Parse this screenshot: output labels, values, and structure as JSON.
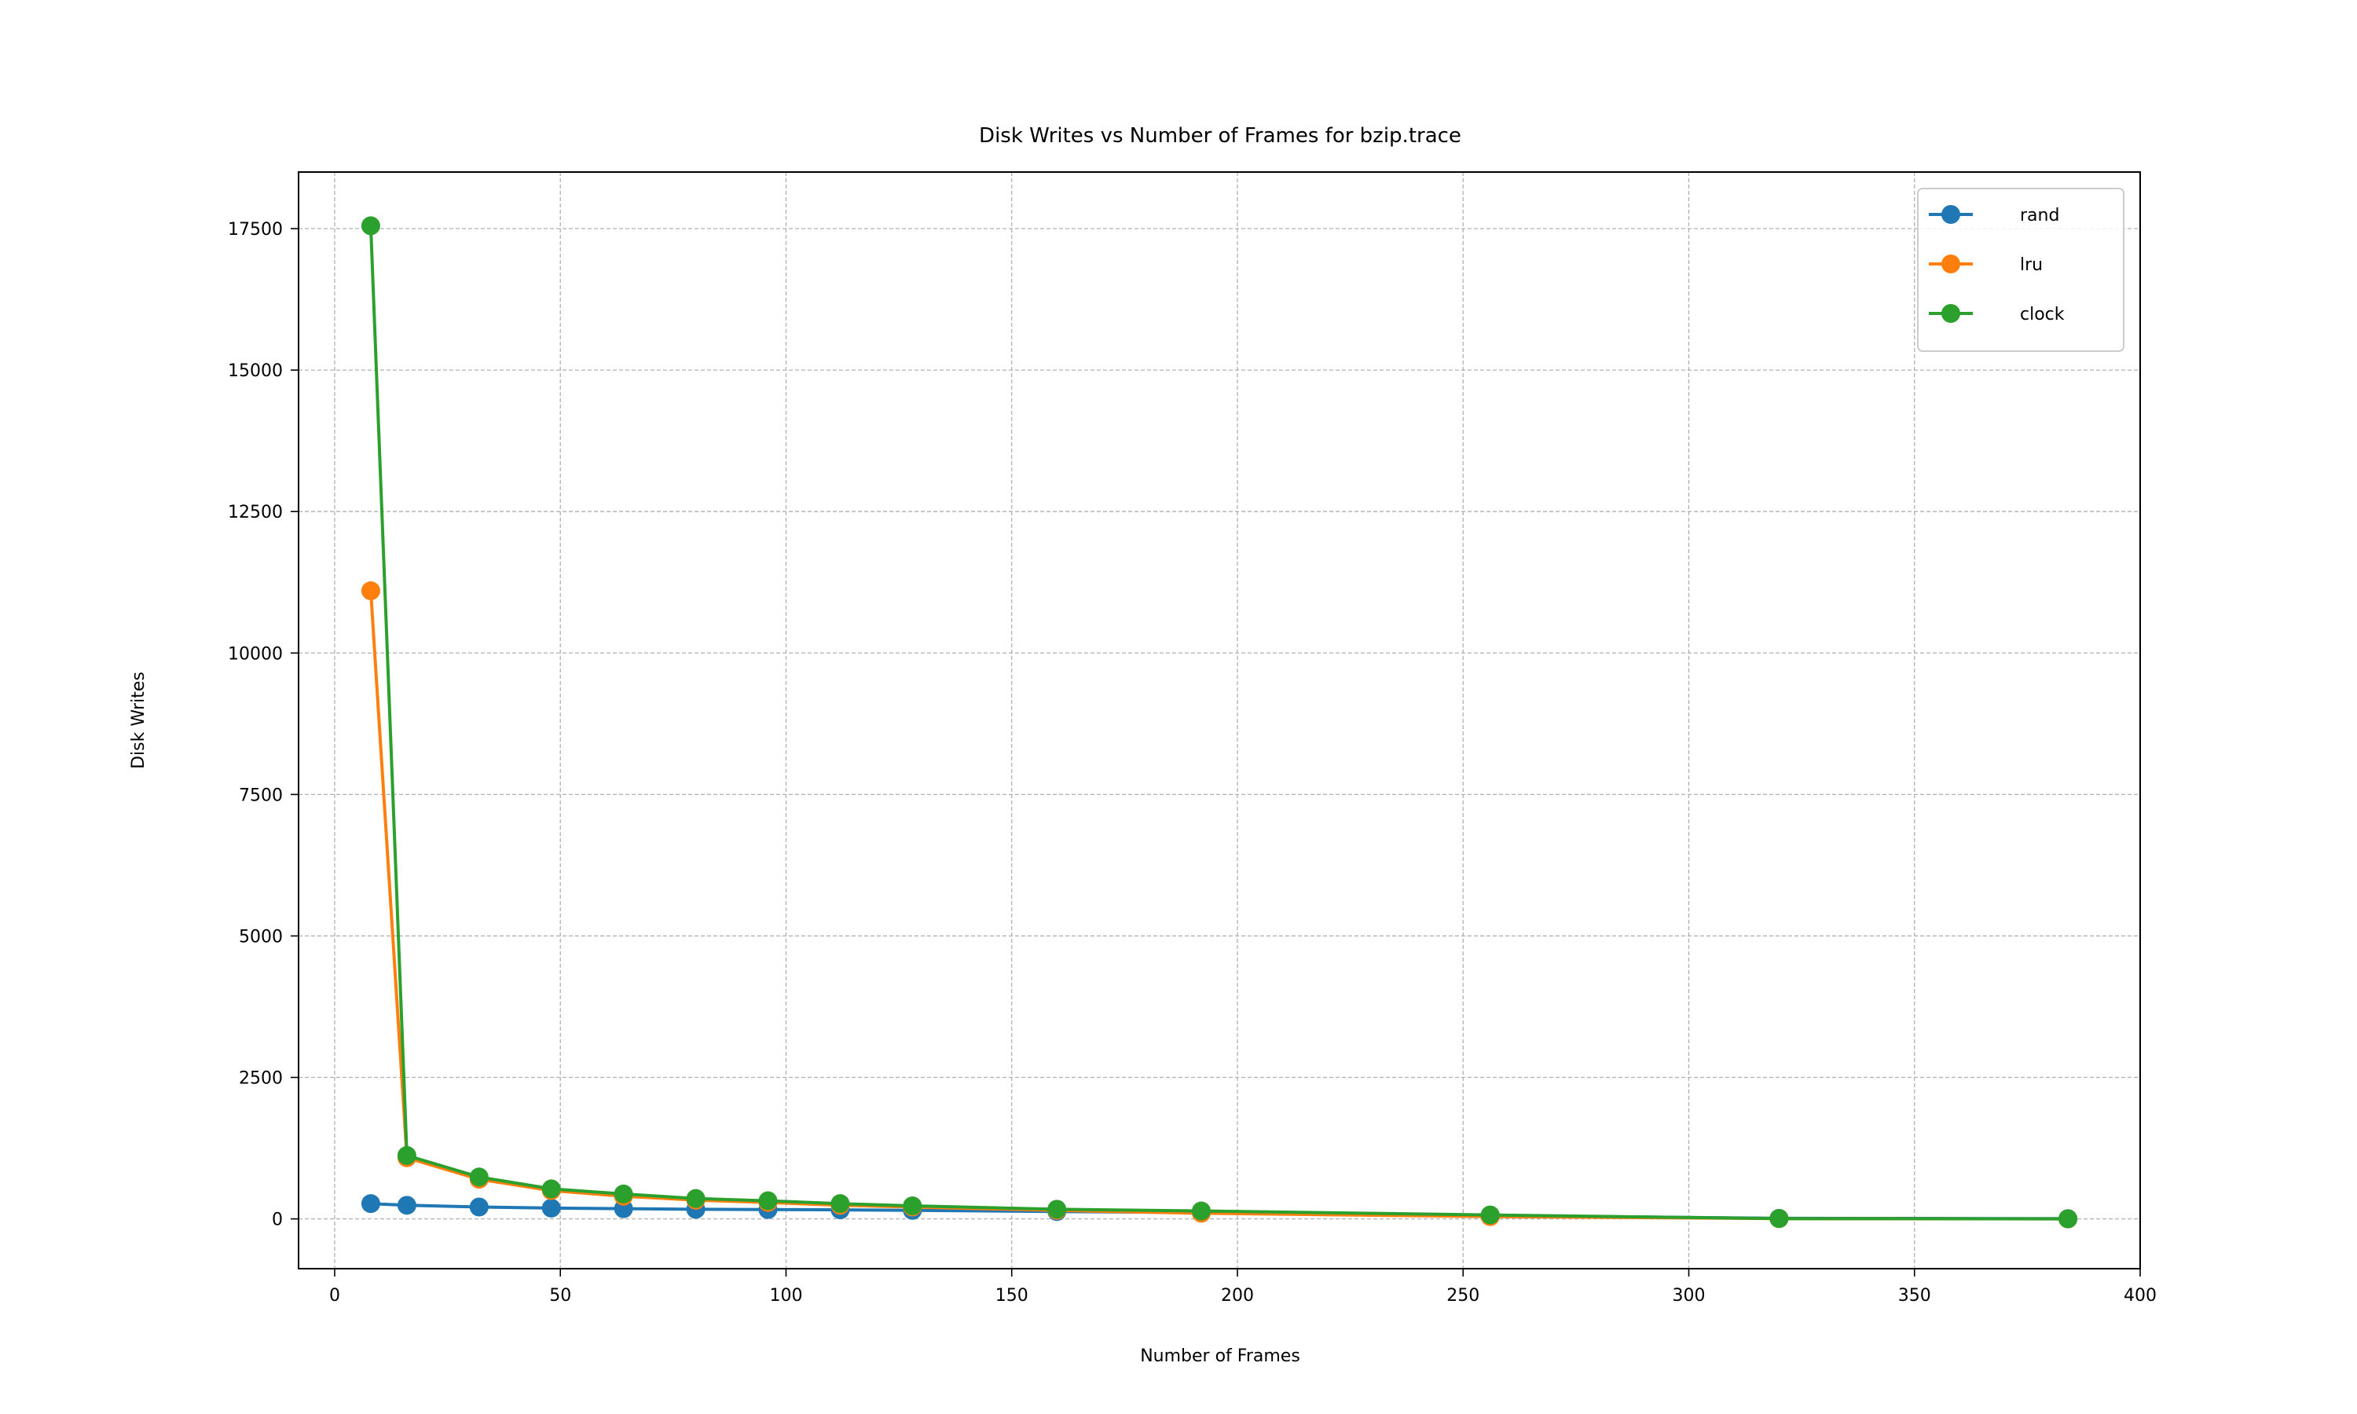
{
  "chart_data": {
    "type": "line",
    "title": "Disk Writes vs Number of Frames for bzip.trace",
    "xlabel": "Number of Frames",
    "ylabel": "Disk Writes",
    "xlim": [
      -8,
      400
    ],
    "ylim": [
      -880,
      18500
    ],
    "x_ticks": [
      0,
      50,
      100,
      150,
      200,
      250,
      300,
      350,
      400
    ],
    "y_ticks": [
      0,
      2500,
      5000,
      7500,
      10000,
      12500,
      15000,
      17500
    ],
    "grid": true,
    "legend_position": "top-right",
    "x": [
      8,
      16,
      32,
      48,
      64,
      80,
      96,
      112,
      128,
      160,
      192,
      256,
      320,
      384
    ],
    "series": [
      {
        "name": "rand",
        "color": "#1f77b4",
        "values": [
          270,
          240,
          210,
          190,
          180,
          170,
          165,
          160,
          150,
          130,
          110,
          60,
          10,
          5
        ]
      },
      {
        "name": "lru",
        "color": "#ff7f0e",
        "values": [
          11100,
          1080,
          700,
          500,
          400,
          330,
          290,
          240,
          210,
          150,
          100,
          40,
          5,
          0
        ]
      },
      {
        "name": "clock",
        "color": "#2ca02c",
        "values": [
          17550,
          1120,
          740,
          530,
          440,
          360,
          320,
          270,
          230,
          170,
          140,
          70,
          5,
          0
        ]
      }
    ]
  }
}
